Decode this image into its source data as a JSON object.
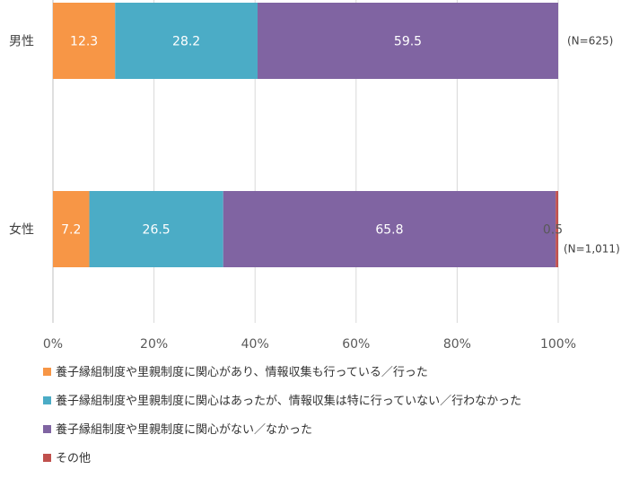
{
  "chart_data": {
    "type": "bar",
    "orientation": "horizontal",
    "stacked": true,
    "categories": [
      "男性",
      "女性"
    ],
    "sample_sizes": [
      "(N=625)",
      "(N=1,011)"
    ],
    "series": [
      {
        "name": "養子縁組制度や里親制度に関心があり、情報収集も行っている／行った",
        "values": [
          12.3,
          7.2
        ],
        "color": "#f79646"
      },
      {
        "name": "養子縁組制度や里親制度に関心はあったが、情報収集は特に行っていない／行わなかった",
        "values": [
          28.2,
          26.5
        ],
        "color": "#4bacc6"
      },
      {
        "name": "養子縁組制度や里親制度に関心がない／なかった",
        "values": [
          59.5,
          65.8
        ],
        "color": "#8064a2"
      },
      {
        "name": "その他",
        "values": [
          0,
          0.5
        ],
        "color": "#c0504d"
      }
    ],
    "data_labels": [
      [
        "12.3",
        "28.2",
        "59.5",
        ""
      ],
      [
        "7.2",
        "26.5",
        "65.8",
        "0.5"
      ]
    ],
    "xlim": [
      0,
      100
    ],
    "x_ticks": [
      "0%",
      "20%",
      "40%",
      "60%",
      "80%",
      "100%"
    ],
    "grid": true,
    "legend_position": "bottom"
  }
}
